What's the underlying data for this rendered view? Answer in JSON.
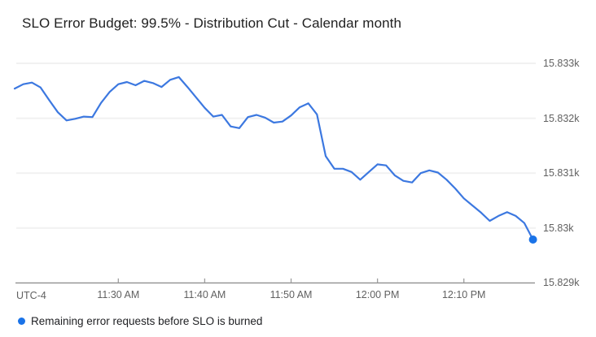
{
  "header": {
    "title": "SLO Error Budget: 99.5% - Distribution Cut - Calendar month"
  },
  "axes": {
    "timezone_label": "UTC-4",
    "x_ticks": [
      "11:30 AM",
      "11:40 AM",
      "11:50 AM",
      "12:00 PM",
      "12:10 PM"
    ],
    "y_ticks": [
      {
        "label": "15.833k",
        "value": 15833
      },
      {
        "label": "15.832k",
        "value": 15832
      },
      {
        "label": "15.831k",
        "value": 15831
      },
      {
        "label": "15.83k",
        "value": 15830
      },
      {
        "label": "15.829k",
        "value": 15829
      }
    ]
  },
  "legend": {
    "label": "Remaining error requests before SLO is burned",
    "marker_color": "#1a73e8"
  },
  "chart_data": {
    "type": "line",
    "title": "SLO Error Budget: 99.5% - Distribution Cut - Calendar month",
    "xlabel": "",
    "ylabel": "",
    "timezone": "UTC-4",
    "x_start": "11:18 AM",
    "x_end": "12:18 PM",
    "x_step_minutes": 1,
    "x_tick_labels": [
      "11:30 AM",
      "11:40 AM",
      "11:50 AM",
      "12:00 PM",
      "12:10 PM"
    ],
    "y_tick_labels": [
      "15.833k",
      "15.832k",
      "15.831k",
      "15.83k",
      "15.829k"
    ],
    "ylim": [
      15829,
      15833.6
    ],
    "grid": "horizontal-only",
    "legend_position": "bottom-left",
    "series": [
      {
        "name": "Remaining error requests before SLO is burned",
        "color": "#3c78e0",
        "endpoint_color": "#1a73e8",
        "values": [
          15832.54,
          15832.62,
          15832.65,
          15832.56,
          15832.33,
          15832.11,
          15831.96,
          15831.99,
          15832.03,
          15832.02,
          15832.28,
          15832.48,
          15832.62,
          15832.66,
          15832.6,
          15832.68,
          15832.64,
          15832.57,
          15832.7,
          15832.75,
          15832.57,
          15832.38,
          15832.19,
          15832.03,
          15832.06,
          15831.85,
          15831.82,
          15832.02,
          15832.06,
          15832.01,
          15831.92,
          15831.94,
          15832.05,
          15832.2,
          15832.27,
          15832.07,
          15831.31,
          15831.08,
          15831.08,
          15831.02,
          15830.88,
          15831.02,
          15831.16,
          15831.14,
          15830.96,
          15830.86,
          15830.83,
          15831.0,
          15831.05,
          15831.01,
          15830.88,
          15830.72,
          15830.54,
          15830.41,
          15830.28,
          15830.13,
          15830.22,
          15830.29,
          15830.22,
          15830.09,
          15829.79
        ]
      }
    ]
  }
}
